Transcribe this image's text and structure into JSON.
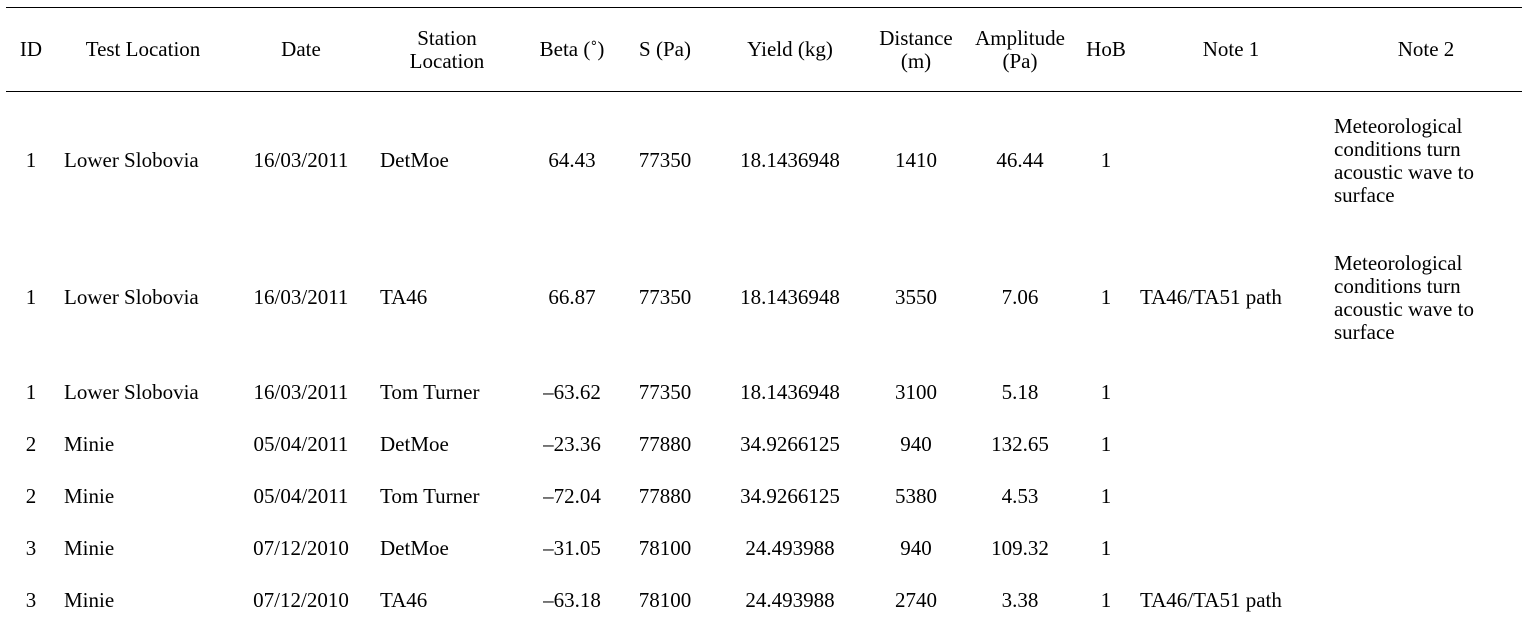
{
  "table": {
    "headers": [
      "ID",
      "Test Location",
      "Date",
      "Station Location",
      "Beta (˚)",
      "S (Pa)",
      "Yield (kg)",
      "Distance (m)",
      "Amplitude (Pa)",
      "HoB",
      "Note 1",
      "Note 2"
    ],
    "rows": [
      {
        "id": "1",
        "test_location": "Lower Slobovia",
        "date": "16/03/2011",
        "station": "DetMoe",
        "beta": "64.43",
        "s": "77350",
        "yield": "18.1436948",
        "distance": "1410",
        "amplitude": "46.44",
        "hob": "1",
        "note1": "",
        "note2": "Meteorological conditions turn acoustic wave to surface"
      },
      {
        "id": "1",
        "test_location": "Lower Slobovia",
        "date": "16/03/2011",
        "station": "TA46",
        "beta": "66.87",
        "s": "77350",
        "yield": "18.1436948",
        "distance": "3550",
        "amplitude": "7.06",
        "hob": "1",
        "note1": "TA46/TA51 path",
        "note2": "Meteorological conditions turn acoustic wave to surface"
      },
      {
        "id": "1",
        "test_location": "Lower Slobovia",
        "date": "16/03/2011",
        "station": "Tom Turner",
        "beta": "–63.62",
        "s": "77350",
        "yield": "18.1436948",
        "distance": "3100",
        "amplitude": "5.18",
        "hob": "1",
        "note1": "",
        "note2": ""
      },
      {
        "id": "2",
        "test_location": "Minie",
        "date": "05/04/2011",
        "station": "DetMoe",
        "beta": "–23.36",
        "s": "77880",
        "yield": "34.9266125",
        "distance": "940",
        "amplitude": "132.65",
        "hob": "1",
        "note1": "",
        "note2": ""
      },
      {
        "id": "2",
        "test_location": "Minie",
        "date": "05/04/2011",
        "station": "Tom Turner",
        "beta": "–72.04",
        "s": "77880",
        "yield": "34.9266125",
        "distance": "5380",
        "amplitude": "4.53",
        "hob": "1",
        "note1": "",
        "note2": ""
      },
      {
        "id": "3",
        "test_location": "Minie",
        "date": "07/12/2010",
        "station": "DetMoe",
        "beta": "–31.05",
        "s": "78100",
        "yield": "24.493988",
        "distance": "940",
        "amplitude": "109.32",
        "hob": "1",
        "note1": "",
        "note2": ""
      },
      {
        "id": "3",
        "test_location": "Minie",
        "date": "07/12/2010",
        "station": "TA46",
        "beta": "–63.18",
        "s": "78100",
        "yield": "24.493988",
        "distance": "2740",
        "amplitude": "3.38",
        "hob": "1",
        "note1": "TA46/TA51 path",
        "note2": ""
      }
    ]
  }
}
